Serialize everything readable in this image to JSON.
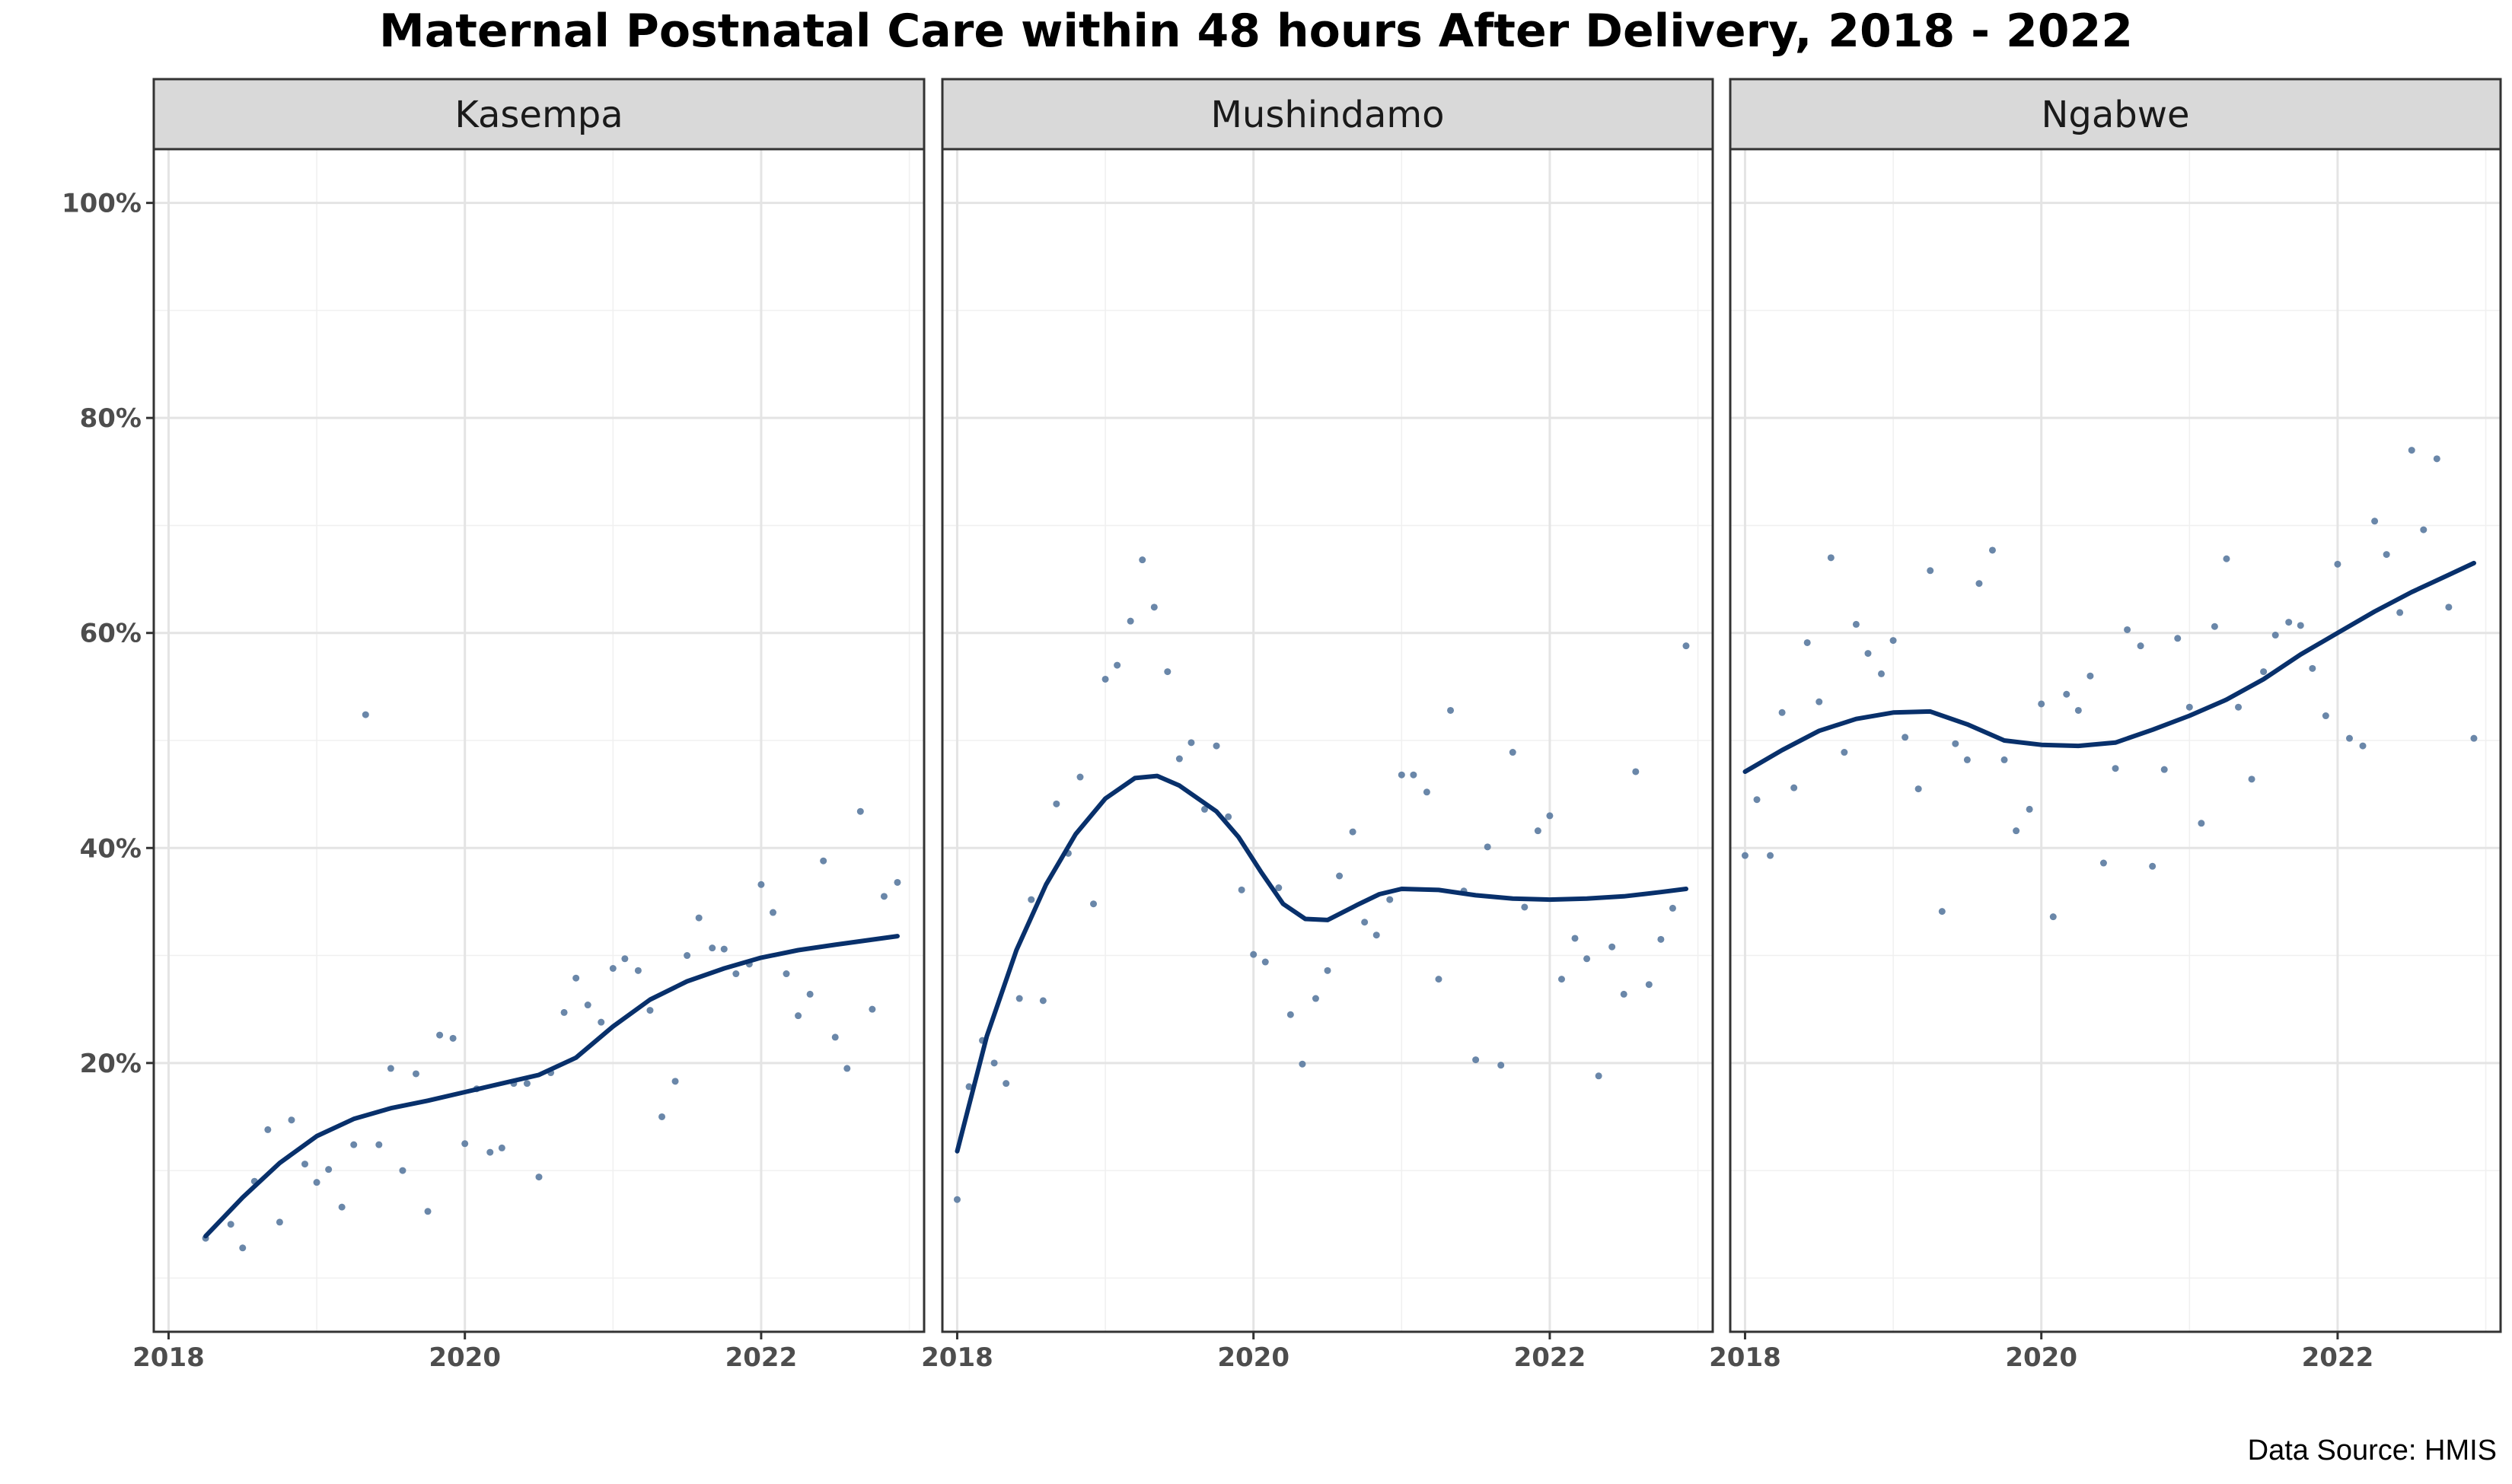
{
  "caption": "Data Source: HMIS",
  "chart_data": {
    "type": "scatter",
    "title": "Maternal Postnatal Care within 48 hours After Delivery, 2018 - 2022",
    "xlabel": "",
    "ylabel": "",
    "xlim": [
      2017.9,
      2023.1
    ],
    "ylim": [
      -5,
      105
    ],
    "x_ticks": [
      2018,
      2020,
      2022
    ],
    "x_tick_labels": [
      "2018",
      "2020",
      "2022"
    ],
    "y_ticks": [
      20,
      40,
      60,
      80,
      100
    ],
    "y_tick_labels": [
      "20%",
      "40%",
      "60%",
      "80%",
      "100%"
    ],
    "grid": true,
    "point_color": "#5a7aa0",
    "line_color": "#08306b",
    "strip_color": "#d9d9d9",
    "facets": [
      {
        "name": "Kasempa",
        "points": [
          [
            2018.25,
            3.7
          ],
          [
            2018.42,
            5.0
          ],
          [
            2018.5,
            2.8
          ],
          [
            2018.58,
            9.0
          ],
          [
            2018.67,
            13.8
          ],
          [
            2018.75,
            5.2
          ],
          [
            2018.83,
            14.7
          ],
          [
            2018.92,
            10.6
          ],
          [
            2019.0,
            8.9
          ],
          [
            2019.08,
            10.1
          ],
          [
            2019.17,
            6.6
          ],
          [
            2019.25,
            12.4
          ],
          [
            2019.33,
            52.4
          ],
          [
            2019.42,
            12.4
          ],
          [
            2019.5,
            19.5
          ],
          [
            2019.58,
            10.0
          ],
          [
            2019.67,
            19.0
          ],
          [
            2019.75,
            6.2
          ],
          [
            2019.83,
            22.6
          ],
          [
            2019.92,
            22.3
          ],
          [
            2020.0,
            12.5
          ],
          [
            2020.08,
            17.6
          ],
          [
            2020.17,
            11.7
          ],
          [
            2020.25,
            12.1
          ],
          [
            2020.33,
            18.1
          ],
          [
            2020.42,
            18.1
          ],
          [
            2020.5,
            9.4
          ],
          [
            2020.58,
            19.1
          ],
          [
            2020.67,
            24.7
          ],
          [
            2020.75,
            27.9
          ],
          [
            2020.83,
            25.4
          ],
          [
            2020.92,
            23.8
          ],
          [
            2021.0,
            28.8
          ],
          [
            2021.08,
            29.7
          ],
          [
            2021.17,
            28.6
          ],
          [
            2021.25,
            24.9
          ],
          [
            2021.33,
            15.0
          ],
          [
            2021.42,
            18.3
          ],
          [
            2021.5,
            30.0
          ],
          [
            2021.58,
            33.5
          ],
          [
            2021.67,
            30.7
          ],
          [
            2021.75,
            30.6
          ],
          [
            2021.83,
            28.3
          ],
          [
            2021.92,
            29.2
          ],
          [
            2022.0,
            36.6
          ],
          [
            2022.08,
            34.0
          ],
          [
            2022.17,
            28.3
          ],
          [
            2022.25,
            24.4
          ],
          [
            2022.33,
            26.4
          ],
          [
            2022.42,
            38.8
          ],
          [
            2022.5,
            22.4
          ],
          [
            2022.58,
            19.5
          ],
          [
            2022.67,
            43.4
          ],
          [
            2022.75,
            25.0
          ],
          [
            2022.83,
            35.5
          ],
          [
            2022.92,
            36.8
          ]
        ],
        "smooth": [
          [
            2018.25,
            3.9
          ],
          [
            2018.5,
            7.5
          ],
          [
            2018.75,
            10.7
          ],
          [
            2019.0,
            13.2
          ],
          [
            2019.25,
            14.8
          ],
          [
            2019.5,
            15.8
          ],
          [
            2019.75,
            16.5
          ],
          [
            2020.0,
            17.3
          ],
          [
            2020.25,
            18.1
          ],
          [
            2020.5,
            18.9
          ],
          [
            2020.75,
            20.5
          ],
          [
            2021.0,
            23.4
          ],
          [
            2021.25,
            25.9
          ],
          [
            2021.5,
            27.6
          ],
          [
            2021.75,
            28.8
          ],
          [
            2022.0,
            29.8
          ],
          [
            2022.25,
            30.5
          ],
          [
            2022.5,
            31.0
          ],
          [
            2022.92,
            31.8
          ]
        ]
      },
      {
        "name": "Mushindamo",
        "points": [
          [
            2018.0,
            7.3
          ],
          [
            2018.08,
            17.8
          ],
          [
            2018.17,
            22.1
          ],
          [
            2018.25,
            20.0
          ],
          [
            2018.33,
            18.1
          ],
          [
            2018.42,
            26.0
          ],
          [
            2018.5,
            35.2
          ],
          [
            2018.58,
            25.8
          ],
          [
            2018.67,
            44.1
          ],
          [
            2018.75,
            39.5
          ],
          [
            2018.83,
            46.6
          ],
          [
            2018.92,
            34.8
          ],
          [
            2019.0,
            55.7
          ],
          [
            2019.08,
            57.0
          ],
          [
            2019.17,
            61.1
          ],
          [
            2019.25,
            66.8
          ],
          [
            2019.33,
            62.4
          ],
          [
            2019.42,
            56.4
          ],
          [
            2019.5,
            48.3
          ],
          [
            2019.58,
            49.8
          ],
          [
            2019.67,
            43.6
          ],
          [
            2019.75,
            49.5
          ],
          [
            2019.83,
            42.9
          ],
          [
            2019.92,
            36.1
          ],
          [
            2020.0,
            30.1
          ],
          [
            2020.08,
            29.4
          ],
          [
            2020.17,
            36.3
          ],
          [
            2020.25,
            24.5
          ],
          [
            2020.33,
            19.9
          ],
          [
            2020.42,
            26.0
          ],
          [
            2020.5,
            28.6
          ],
          [
            2020.58,
            37.4
          ],
          [
            2020.67,
            41.5
          ],
          [
            2020.75,
            33.1
          ],
          [
            2020.83,
            31.9
          ],
          [
            2020.92,
            35.2
          ],
          [
            2021.0,
            46.8
          ],
          [
            2021.08,
            46.8
          ],
          [
            2021.17,
            45.2
          ],
          [
            2021.25,
            27.8
          ],
          [
            2021.33,
            52.8
          ],
          [
            2021.42,
            36.0
          ],
          [
            2021.5,
            20.3
          ],
          [
            2021.58,
            40.1
          ],
          [
            2021.67,
            19.8
          ],
          [
            2021.75,
            48.9
          ],
          [
            2021.83,
            34.5
          ],
          [
            2021.92,
            41.6
          ],
          [
            2022.0,
            43.0
          ],
          [
            2022.08,
            27.8
          ],
          [
            2022.17,
            31.6
          ],
          [
            2022.25,
            29.7
          ],
          [
            2022.33,
            18.8
          ],
          [
            2022.42,
            30.8
          ],
          [
            2022.5,
            26.4
          ],
          [
            2022.58,
            47.1
          ],
          [
            2022.67,
            27.3
          ],
          [
            2022.75,
            31.5
          ],
          [
            2022.83,
            34.4
          ],
          [
            2022.92,
            58.8
          ]
        ],
        "smooth": [
          [
            2018.0,
            11.8
          ],
          [
            2018.2,
            22.5
          ],
          [
            2018.4,
            30.5
          ],
          [
            2018.6,
            36.6
          ],
          [
            2018.8,
            41.3
          ],
          [
            2019.0,
            44.6
          ],
          [
            2019.2,
            46.5
          ],
          [
            2019.35,
            46.7
          ],
          [
            2019.5,
            45.8
          ],
          [
            2019.75,
            43.4
          ],
          [
            2019.9,
            41.0
          ],
          [
            2020.05,
            37.8
          ],
          [
            2020.2,
            34.8
          ],
          [
            2020.35,
            33.4
          ],
          [
            2020.5,
            33.3
          ],
          [
            2020.7,
            34.7
          ],
          [
            2020.85,
            35.7
          ],
          [
            2021.0,
            36.2
          ],
          [
            2021.25,
            36.1
          ],
          [
            2021.5,
            35.6
          ],
          [
            2021.75,
            35.3
          ],
          [
            2022.0,
            35.2
          ],
          [
            2022.25,
            35.3
          ],
          [
            2022.5,
            35.5
          ],
          [
            2022.75,
            35.9
          ],
          [
            2022.92,
            36.2
          ]
        ]
      },
      {
        "name": "Ngabwe",
        "points": [
          [
            2018.0,
            39.3
          ],
          [
            2018.08,
            44.5
          ],
          [
            2018.17,
            39.3
          ],
          [
            2018.25,
            52.6
          ],
          [
            2018.33,
            45.6
          ],
          [
            2018.42,
            59.1
          ],
          [
            2018.5,
            53.6
          ],
          [
            2018.58,
            67.0
          ],
          [
            2018.67,
            48.9
          ],
          [
            2018.75,
            60.8
          ],
          [
            2018.83,
            58.1
          ],
          [
            2018.92,
            56.2
          ],
          [
            2019.0,
            59.3
          ],
          [
            2019.08,
            50.3
          ],
          [
            2019.17,
            45.5
          ],
          [
            2019.25,
            65.8
          ],
          [
            2019.33,
            34.1
          ],
          [
            2019.42,
            49.7
          ],
          [
            2019.5,
            48.2
          ],
          [
            2019.58,
            64.6
          ],
          [
            2019.67,
            67.7
          ],
          [
            2019.75,
            48.2
          ],
          [
            2019.83,
            41.6
          ],
          [
            2019.92,
            43.6
          ],
          [
            2020.0,
            53.4
          ],
          [
            2020.08,
            33.6
          ],
          [
            2020.17,
            54.3
          ],
          [
            2020.25,
            52.8
          ],
          [
            2020.33,
            56.0
          ],
          [
            2020.42,
            38.6
          ],
          [
            2020.5,
            47.4
          ],
          [
            2020.58,
            60.3
          ],
          [
            2020.67,
            58.8
          ],
          [
            2020.75,
            38.3
          ],
          [
            2020.83,
            47.3
          ],
          [
            2020.92,
            59.5
          ],
          [
            2021.0,
            53.1
          ],
          [
            2021.08,
            42.3
          ],
          [
            2021.17,
            60.6
          ],
          [
            2021.25,
            66.9
          ],
          [
            2021.33,
            53.1
          ],
          [
            2021.42,
            46.4
          ],
          [
            2021.5,
            56.4
          ],
          [
            2021.58,
            59.8
          ],
          [
            2021.67,
            61.0
          ],
          [
            2021.75,
            60.7
          ],
          [
            2021.83,
            56.7
          ],
          [
            2021.92,
            52.3
          ],
          [
            2022.0,
            66.4
          ],
          [
            2022.08,
            50.2
          ],
          [
            2022.17,
            49.5
          ],
          [
            2022.25,
            70.4
          ],
          [
            2022.33,
            67.3
          ],
          [
            2022.42,
            61.9
          ],
          [
            2022.5,
            77.0
          ],
          [
            2022.58,
            69.6
          ],
          [
            2022.67,
            76.2
          ],
          [
            2022.75,
            62.4
          ],
          [
            2022.92,
            50.2
          ]
        ],
        "smooth": [
          [
            2018.0,
            47.1
          ],
          [
            2018.25,
            49.1
          ],
          [
            2018.5,
            50.9
          ],
          [
            2018.75,
            52.0
          ],
          [
            2019.0,
            52.6
          ],
          [
            2019.25,
            52.7
          ],
          [
            2019.5,
            51.5
          ],
          [
            2019.75,
            50.0
          ],
          [
            2020.0,
            49.6
          ],
          [
            2020.25,
            49.5
          ],
          [
            2020.5,
            49.8
          ],
          [
            2020.75,
            51.0
          ],
          [
            2021.0,
            52.3
          ],
          [
            2021.25,
            53.8
          ],
          [
            2021.5,
            55.7
          ],
          [
            2021.75,
            58.0
          ],
          [
            2022.0,
            60.0
          ],
          [
            2022.25,
            62.0
          ],
          [
            2022.5,
            63.8
          ],
          [
            2022.75,
            65.4
          ],
          [
            2022.92,
            66.5
          ]
        ]
      }
    ]
  }
}
